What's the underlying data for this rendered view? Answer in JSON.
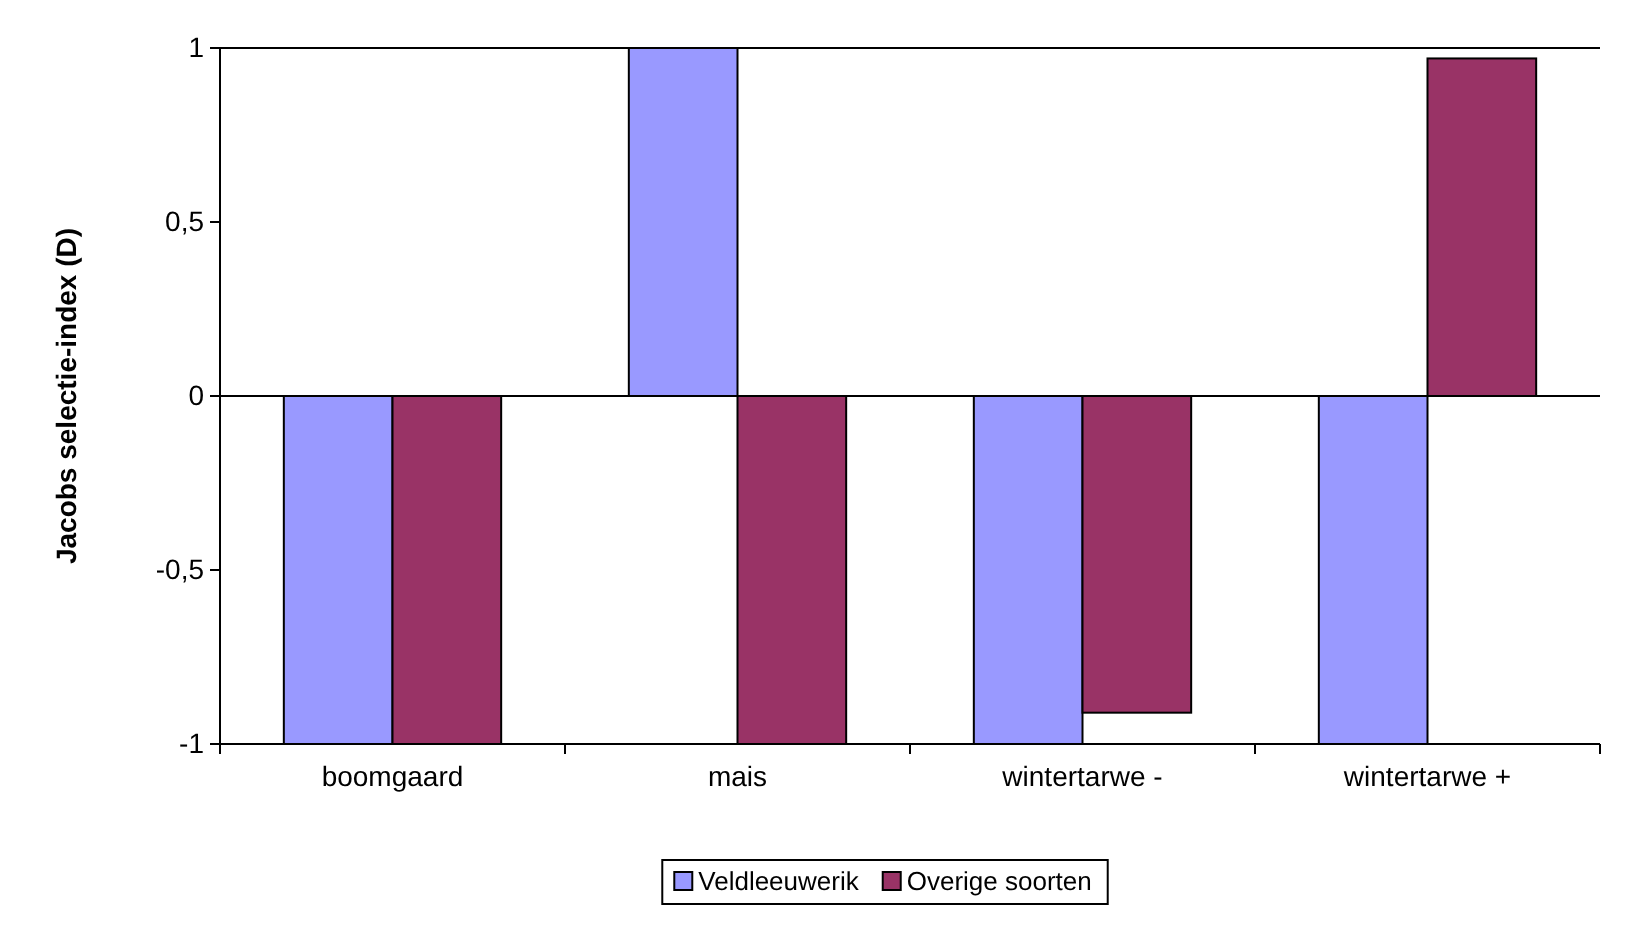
{
  "chart_data": {
    "type": "bar",
    "ylabel": "Jacobs selectie-index (D)",
    "categories": [
      "boomgaard",
      "mais",
      "wintertarwe -",
      "wintertarwe +"
    ],
    "series": [
      {
        "name": "Veldleeuwerik",
        "color": "#9999ff",
        "values": [
          -1,
          1,
          -1,
          -1
        ]
      },
      {
        "name": "Overige soorten",
        "color": "#993366",
        "values": [
          -1,
          -1,
          -0.91,
          0.97
        ]
      }
    ],
    "ylim": [
      -1,
      1
    ],
    "yticks": [
      {
        "value": -1,
        "label": "-1"
      },
      {
        "value": -0.5,
        "label": "-0,5"
      },
      0,
      {
        "value": 0.5,
        "label": "0,5"
      },
      1
    ],
    "legend": "bottom"
  }
}
